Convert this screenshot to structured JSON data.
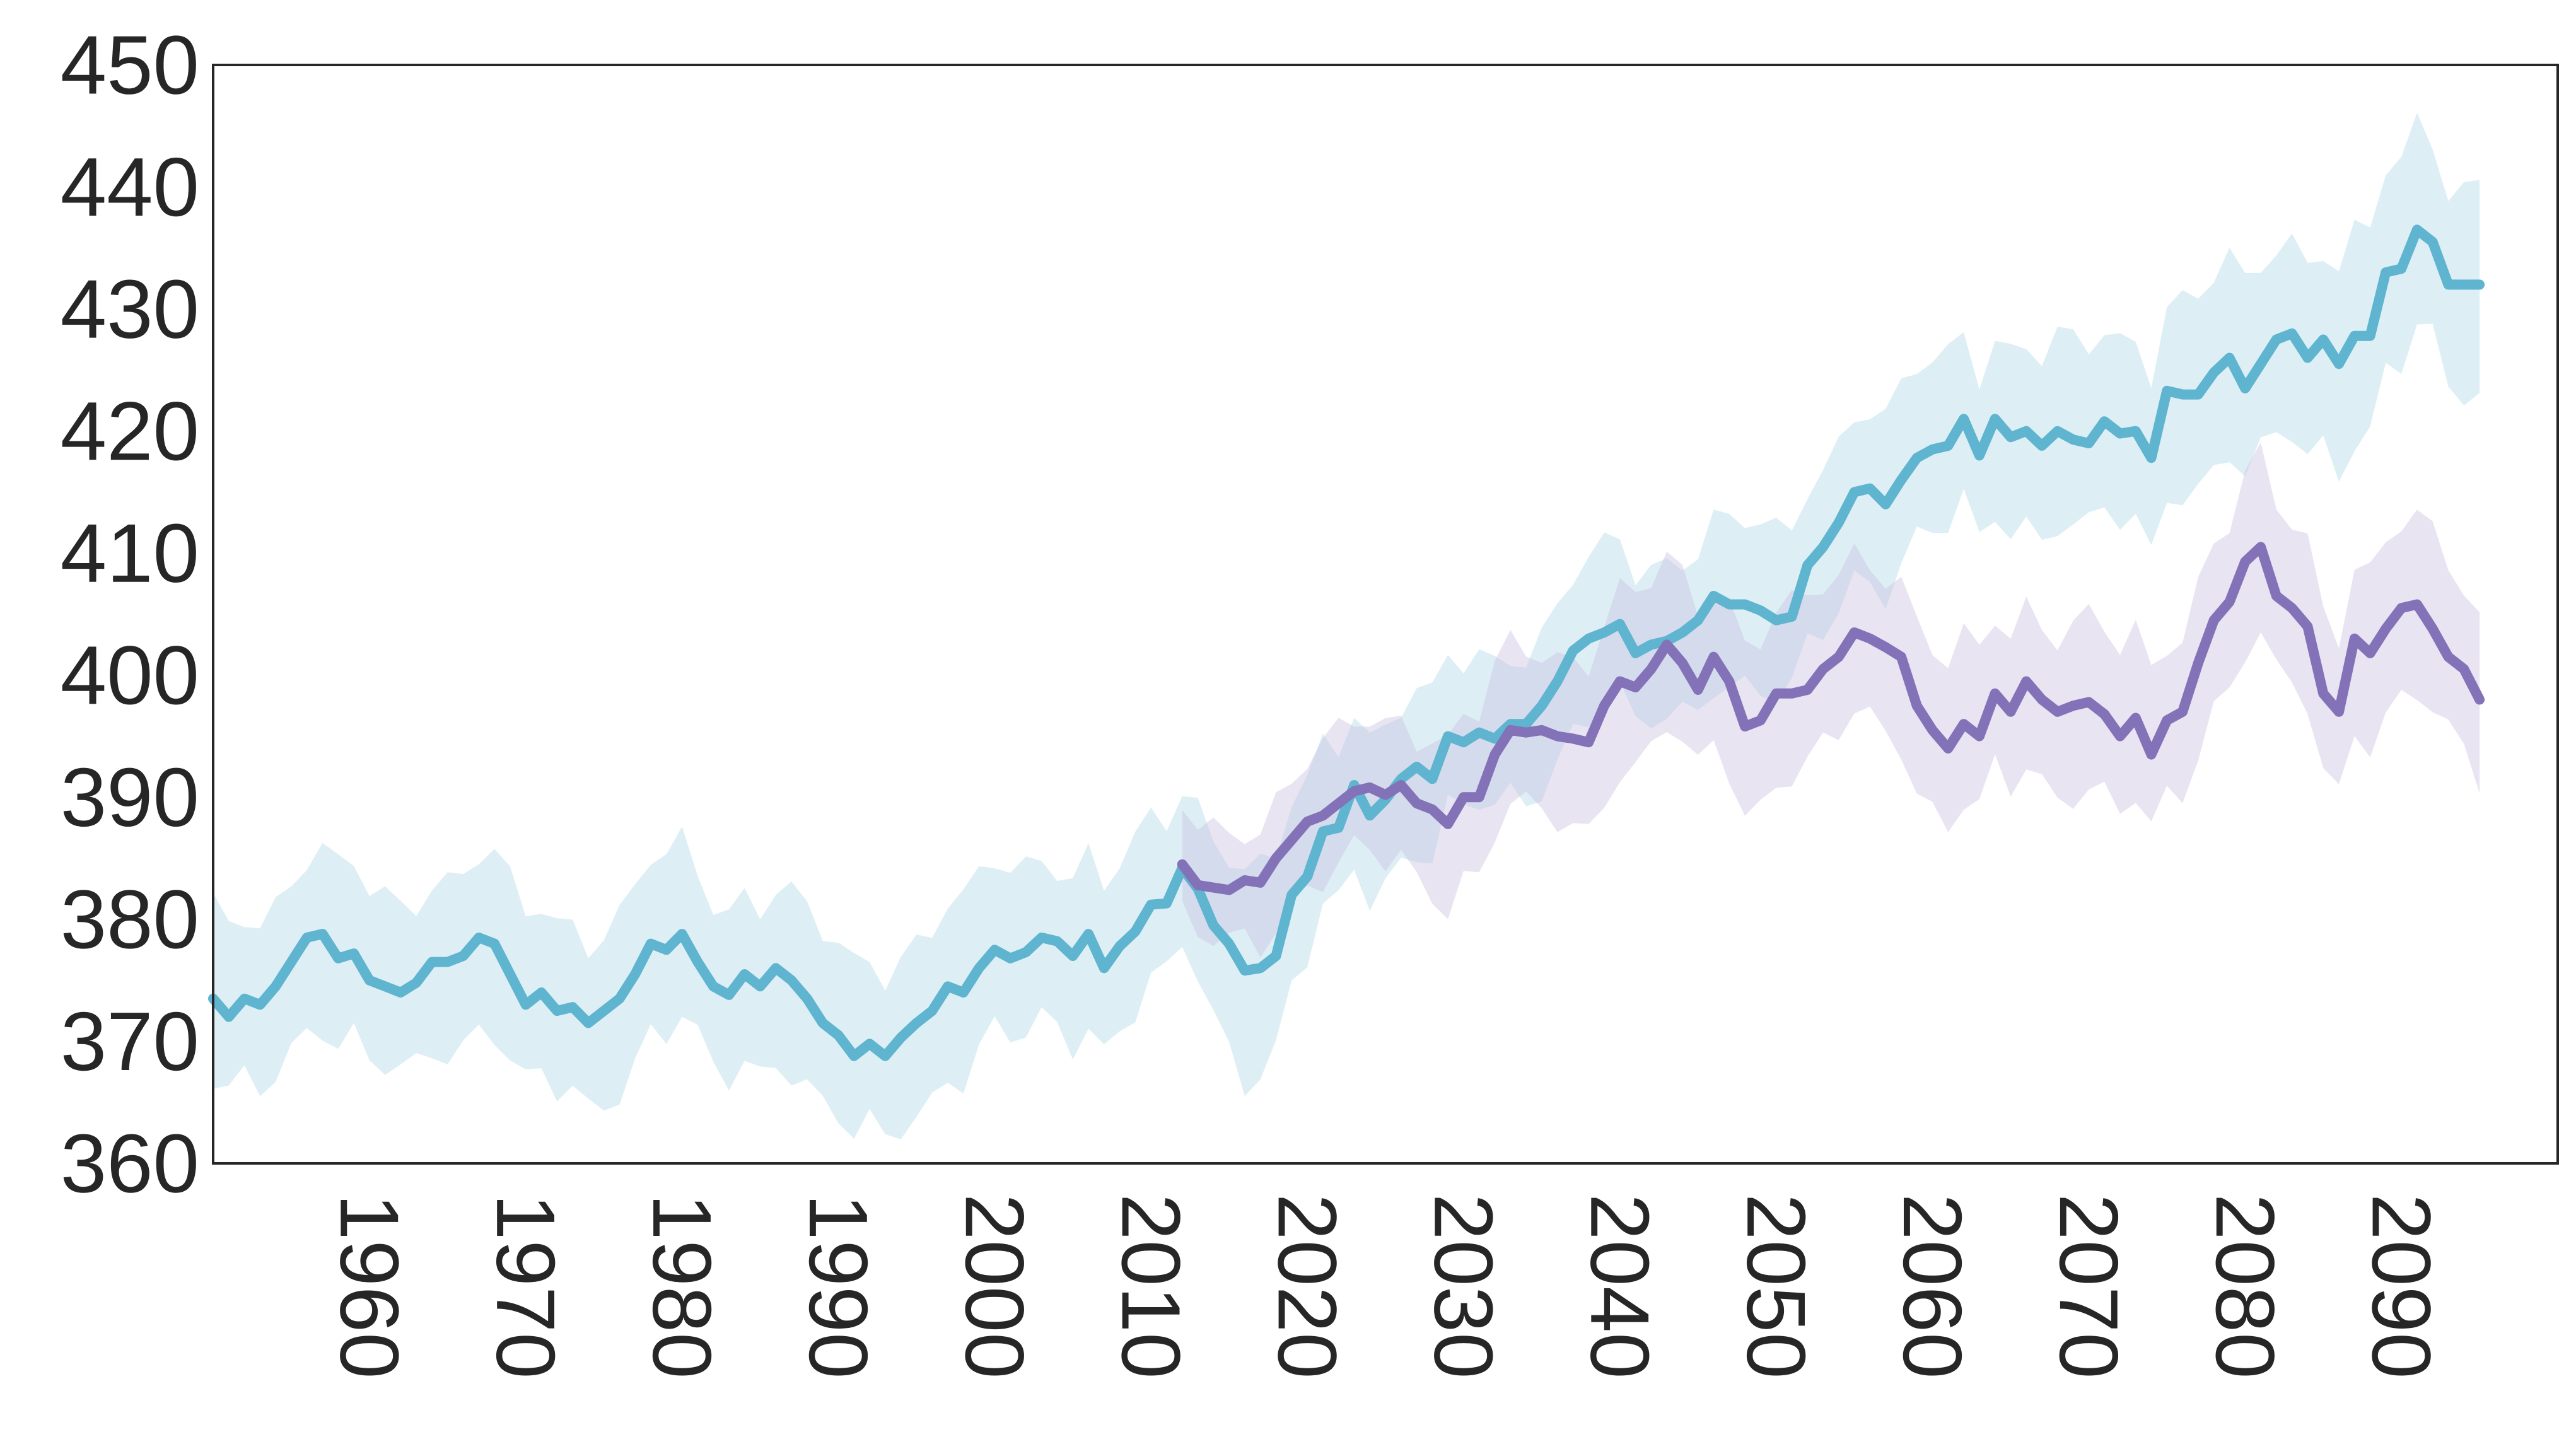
{
  "chart_data": {
    "type": "line",
    "title": "",
    "xlabel": "",
    "ylabel": "",
    "xlim": [
      1950,
      2100
    ],
    "ylim": [
      360,
      450
    ],
    "x_ticks": [
      1960,
      1970,
      1980,
      1990,
      2000,
      2010,
      2020,
      2030,
      2040,
      2050,
      2060,
      2070,
      2080,
      2090
    ],
    "y_ticks": [
      360,
      370,
      380,
      390,
      400,
      410,
      420,
      430,
      440,
      450
    ],
    "grid": false,
    "legend": "none",
    "series": [
      {
        "color": "#5fb4cf",
        "band_color": "#add8e6",
        "points": [
          [
            1950,
            373.5
          ],
          [
            1951,
            372.0
          ],
          [
            1952,
            373.5
          ],
          [
            1953,
            373.0
          ],
          [
            1954,
            374.5
          ],
          [
            1955,
            376.5
          ],
          [
            1956,
            378.5
          ],
          [
            1957,
            378.8
          ],
          [
            1958,
            376.8
          ],
          [
            1959,
            377.2
          ],
          [
            1960,
            375.0
          ],
          [
            1961,
            374.5
          ],
          [
            1962,
            374.0
          ],
          [
            1963,
            374.8
          ],
          [
            1964,
            376.5
          ],
          [
            1965,
            376.5
          ],
          [
            1966,
            377.0
          ],
          [
            1967,
            378.5
          ],
          [
            1968,
            378.0
          ],
          [
            1969,
            375.5
          ],
          [
            1970,
            373.0
          ],
          [
            1971,
            374.0
          ],
          [
            1972,
            372.5
          ],
          [
            1973,
            372.8
          ],
          [
            1974,
            371.5
          ],
          [
            1975,
            372.5
          ],
          [
            1976,
            373.5
          ],
          [
            1977,
            375.5
          ],
          [
            1978,
            378.0
          ],
          [
            1979,
            377.5
          ],
          [
            1980,
            378.8
          ],
          [
            1981,
            376.5
          ],
          [
            1982,
            374.5
          ],
          [
            1983,
            373.8
          ],
          [
            1984,
            375.5
          ],
          [
            1985,
            374.5
          ],
          [
            1986,
            376.0
          ],
          [
            1987,
            375.0
          ],
          [
            1988,
            373.5
          ],
          [
            1989,
            371.5
          ],
          [
            1990,
            370.5
          ],
          [
            1991,
            368.8
          ],
          [
            1992,
            369.8
          ],
          [
            1993,
            368.8
          ],
          [
            1994,
            370.3
          ],
          [
            1995,
            371.5
          ],
          [
            1996,
            372.5
          ],
          [
            1997,
            374.5
          ],
          [
            1998,
            374.0
          ],
          [
            1999,
            376.0
          ],
          [
            2000,
            377.5
          ],
          [
            2001,
            376.8
          ],
          [
            2002,
            377.3
          ],
          [
            2003,
            378.5
          ],
          [
            2004,
            378.2
          ],
          [
            2005,
            377.0
          ],
          [
            2006,
            378.8
          ],
          [
            2007,
            376.0
          ],
          [
            2008,
            377.8
          ],
          [
            2009,
            379.0
          ],
          [
            2010,
            381.2
          ],
          [
            2011,
            381.3
          ],
          [
            2012,
            384.2
          ],
          [
            2013,
            382.5
          ],
          [
            2014,
            379.5
          ],
          [
            2015,
            378.0
          ],
          [
            2016,
            375.8
          ],
          [
            2017,
            376.0
          ],
          [
            2018,
            377.0
          ],
          [
            2019,
            382.0
          ],
          [
            2020,
            383.5
          ],
          [
            2021,
            387.2
          ],
          [
            2022,
            387.5
          ],
          [
            2023,
            391.0
          ],
          [
            2024,
            388.5
          ],
          [
            2025,
            389.8
          ],
          [
            2026,
            391.5
          ],
          [
            2027,
            392.5
          ],
          [
            2028,
            391.5
          ],
          [
            2029,
            395.0
          ],
          [
            2030,
            394.5
          ],
          [
            2031,
            395.3
          ],
          [
            2032,
            394.8
          ],
          [
            2033,
            396.0
          ],
          [
            2034,
            396.0
          ],
          [
            2035,
            397.5
          ],
          [
            2036,
            399.5
          ],
          [
            2037,
            402.0
          ],
          [
            2038,
            403.0
          ],
          [
            2039,
            403.5
          ],
          [
            2040,
            404.2
          ],
          [
            2041,
            401.8
          ],
          [
            2042,
            402.5
          ],
          [
            2043,
            402.8
          ],
          [
            2044,
            403.5
          ],
          [
            2045,
            404.5
          ],
          [
            2046,
            406.5
          ],
          [
            2047,
            405.8
          ],
          [
            2048,
            405.8
          ],
          [
            2049,
            405.3
          ],
          [
            2050,
            404.5
          ],
          [
            2051,
            404.8
          ],
          [
            2052,
            409.0
          ],
          [
            2053,
            410.5
          ],
          [
            2054,
            412.5
          ],
          [
            2055,
            415.0
          ],
          [
            2056,
            415.3
          ],
          [
            2057,
            414.0
          ],
          [
            2058,
            416.0
          ],
          [
            2059,
            417.8
          ],
          [
            2060,
            418.5
          ],
          [
            2061,
            418.8
          ],
          [
            2062,
            421.0
          ],
          [
            2063,
            418.0
          ],
          [
            2064,
            421.0
          ],
          [
            2065,
            419.5
          ],
          [
            2066,
            420.0
          ],
          [
            2067,
            418.8
          ],
          [
            2068,
            420.0
          ],
          [
            2069,
            419.3
          ],
          [
            2070,
            419.0
          ],
          [
            2071,
            420.8
          ],
          [
            2072,
            419.8
          ],
          [
            2073,
            420.0
          ],
          [
            2074,
            417.8
          ],
          [
            2075,
            423.3
          ],
          [
            2076,
            423.0
          ],
          [
            2077,
            423.0
          ],
          [
            2078,
            424.8
          ],
          [
            2079,
            426.0
          ],
          [
            2080,
            423.5
          ],
          [
            2081,
            425.5
          ],
          [
            2082,
            427.5
          ],
          [
            2083,
            428.0
          ],
          [
            2084,
            426.0
          ],
          [
            2085,
            427.5
          ],
          [
            2086,
            425.5
          ],
          [
            2087,
            427.8
          ],
          [
            2088,
            427.8
          ],
          [
            2089,
            433.0
          ],
          [
            2090,
            433.3
          ],
          [
            2091,
            436.5
          ],
          [
            2092,
            435.5
          ],
          [
            2093,
            432.0
          ],
          [
            2094,
            432.0
          ],
          [
            2095,
            432.0
          ]
        ],
        "band_halfwidth": [
          [
            1950,
            7.0
          ],
          [
            2000,
            7.0
          ],
          [
            2012,
            6.5
          ],
          [
            2016,
            8.5
          ],
          [
            2020,
            7.0
          ],
          [
            2030,
            6.0
          ],
          [
            2060,
            7.0
          ],
          [
            2095,
            8.5
          ]
        ]
      },
      {
        "color": "#8372b8",
        "band_color": "#c7bfe0",
        "points": [
          [
            2012,
            384.5
          ],
          [
            2013,
            382.8
          ],
          [
            2014,
            382.6
          ],
          [
            2015,
            382.4
          ],
          [
            2016,
            383.2
          ],
          [
            2017,
            383.0
          ],
          [
            2018,
            385.0
          ],
          [
            2019,
            386.5
          ],
          [
            2020,
            388.0
          ],
          [
            2021,
            388.5
          ],
          [
            2022,
            389.5
          ],
          [
            2023,
            390.5
          ],
          [
            2024,
            390.8
          ],
          [
            2025,
            390.2
          ],
          [
            2026,
            391.0
          ],
          [
            2027,
            389.5
          ],
          [
            2028,
            389.0
          ],
          [
            2029,
            387.8
          ],
          [
            2030,
            390.0
          ],
          [
            2031,
            390.0
          ],
          [
            2032,
            393.5
          ],
          [
            2033,
            395.5
          ],
          [
            2034,
            395.3
          ],
          [
            2035,
            395.5
          ],
          [
            2036,
            395.0
          ],
          [
            2037,
            394.8
          ],
          [
            2038,
            394.5
          ],
          [
            2039,
            397.5
          ],
          [
            2040,
            399.5
          ],
          [
            2041,
            399.0
          ],
          [
            2042,
            400.5
          ],
          [
            2043,
            402.5
          ],
          [
            2044,
            401.0
          ],
          [
            2045,
            398.8
          ],
          [
            2046,
            401.5
          ],
          [
            2047,
            399.5
          ],
          [
            2048,
            395.8
          ],
          [
            2049,
            396.3
          ],
          [
            2050,
            398.5
          ],
          [
            2051,
            398.5
          ],
          [
            2052,
            398.8
          ],
          [
            2053,
            400.5
          ],
          [
            2054,
            401.5
          ],
          [
            2055,
            403.5
          ],
          [
            2056,
            403.0
          ],
          [
            2057,
            402.3
          ],
          [
            2058,
            401.5
          ],
          [
            2059,
            397.5
          ],
          [
            2060,
            395.5
          ],
          [
            2061,
            394.0
          ],
          [
            2062,
            396.0
          ],
          [
            2063,
            395.0
          ],
          [
            2064,
            398.5
          ],
          [
            2065,
            397.0
          ],
          [
            2066,
            399.5
          ],
          [
            2067,
            398.0
          ],
          [
            2068,
            397.0
          ],
          [
            2069,
            397.5
          ],
          [
            2070,
            397.8
          ],
          [
            2071,
            396.8
          ],
          [
            2072,
            395.0
          ],
          [
            2073,
            396.5
          ],
          [
            2074,
            393.5
          ],
          [
            2075,
            396.3
          ],
          [
            2076,
            397.0
          ],
          [
            2077,
            401.0
          ],
          [
            2078,
            404.5
          ],
          [
            2079,
            406.0
          ],
          [
            2080,
            409.3
          ],
          [
            2081,
            410.5
          ],
          [
            2082,
            406.5
          ],
          [
            2083,
            405.5
          ],
          [
            2084,
            404.0
          ],
          [
            2085,
            398.5
          ],
          [
            2086,
            397.0
          ],
          [
            2087,
            403.0
          ],
          [
            2088,
            401.8
          ],
          [
            2089,
            403.8
          ],
          [
            2090,
            405.5
          ],
          [
            2091,
            405.8
          ],
          [
            2092,
            403.8
          ],
          [
            2093,
            401.5
          ],
          [
            2094,
            400.5
          ],
          [
            2095,
            398.0
          ]
        ],
        "band_halfwidth": [
          [
            2012,
            4.5
          ],
          [
            2020,
            5.0
          ],
          [
            2030,
            6.5
          ],
          [
            2040,
            7.0
          ],
          [
            2060,
            6.5
          ],
          [
            2095,
            7.0
          ]
        ]
      }
    ]
  }
}
